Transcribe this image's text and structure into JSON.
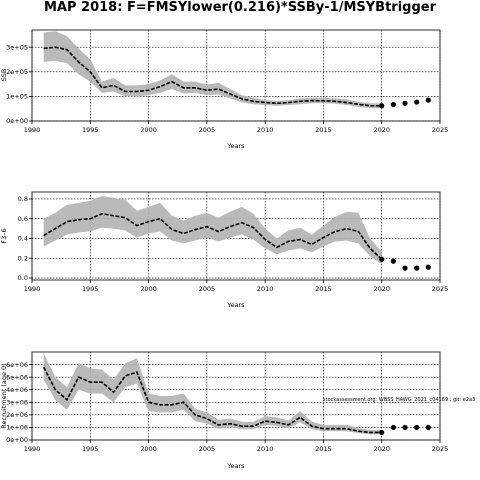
{
  "title": "MAP 2018: F=FMSYlower(0.216)*SSBy-1/MSYBtrigger",
  "chart_data": [
    {
      "type": "line",
      "ylabel": "SSB",
      "xlabel": "Years",
      "xlim": [
        1990,
        2025
      ],
      "ylim": [
        0,
        370000
      ],
      "xticks": [
        "1990",
        "1995",
        "2000",
        "2005",
        "2010",
        "2015",
        "2020",
        "2025"
      ],
      "yticks": [
        "0e+00",
        "1e+05",
        "2e+05",
        "3e+05"
      ],
      "grid": true,
      "series": [
        {
          "x": [
            1991,
            1992,
            1993,
            1994,
            1995,
            1996,
            1997,
            1998,
            1999,
            2000,
            2001,
            2002,
            2003,
            2004,
            2005,
            2006,
            2007,
            2008,
            2009,
            2010,
            2011,
            2012,
            2013,
            2014,
            2015,
            2016,
            2017,
            2018,
            2019,
            2020
          ],
          "values": [
            295000,
            300000,
            290000,
            240000,
            200000,
            135000,
            145000,
            120000,
            120000,
            125000,
            140000,
            160000,
            135000,
            135000,
            125000,
            130000,
            110000,
            90000,
            80000,
            75000,
            72000,
            75000,
            80000,
            83000,
            82000,
            80000,
            75000,
            68000,
            62000,
            62000
          ],
          "lower": [
            240000,
            245000,
            235000,
            190000,
            160000,
            115000,
            120000,
            100000,
            100000,
            105000,
            115000,
            130000,
            112000,
            115000,
            105000,
            108000,
            92000,
            75000,
            68000,
            65000,
            62000,
            65000,
            68000,
            72000,
            72000,
            70000,
            65000,
            58000,
            52000,
            52000
          ],
          "upper": [
            360000,
            365000,
            345000,
            295000,
            250000,
            160000,
            175000,
            145000,
            145000,
            150000,
            165000,
            190000,
            160000,
            160000,
            148000,
            155000,
            130000,
            105000,
            95000,
            85000,
            82000,
            85000,
            92000,
            95000,
            95000,
            92000,
            88000,
            78000,
            72000,
            72000
          ]
        }
      ],
      "projection": {
        "x": [
          2020,
          2021,
          2022,
          2023,
          2024
        ],
        "values": [
          62000,
          67000,
          72000,
          77000,
          85000
        ]
      }
    },
    {
      "type": "line",
      "ylabel": "F3–6",
      "xlabel": "Years",
      "xlim": [
        1990,
        2025
      ],
      "ylim": [
        -0.02,
        0.87
      ],
      "xticks": [
        "1990",
        "1995",
        "2000",
        "2005",
        "2010",
        "2015",
        "2020",
        "2025"
      ],
      "yticks": [
        "0.0",
        "0.2",
        "0.4",
        "0.6",
        "0.8"
      ],
      "grid": true,
      "series": [
        {
          "x": [
            1991,
            1992,
            1993,
            1994,
            1995,
            1996,
            1997,
            1998,
            1999,
            2000,
            2001,
            2002,
            2003,
            2004,
            2005,
            2006,
            2007,
            2008,
            2009,
            2010,
            2011,
            2012,
            2013,
            2014,
            2015,
            2016,
            2017,
            2018,
            2019,
            2020
          ],
          "values": [
            0.43,
            0.5,
            0.57,
            0.59,
            0.6,
            0.65,
            0.63,
            0.61,
            0.53,
            0.57,
            0.6,
            0.49,
            0.45,
            0.49,
            0.52,
            0.47,
            0.52,
            0.56,
            0.51,
            0.39,
            0.31,
            0.37,
            0.39,
            0.34,
            0.41,
            0.47,
            0.5,
            0.47,
            0.3,
            0.19
          ],
          "lower": [
            0.32,
            0.38,
            0.44,
            0.46,
            0.47,
            0.51,
            0.5,
            0.48,
            0.41,
            0.45,
            0.47,
            0.38,
            0.35,
            0.38,
            0.41,
            0.37,
            0.41,
            0.44,
            0.39,
            0.3,
            0.24,
            0.28,
            0.3,
            0.26,
            0.32,
            0.37,
            0.38,
            0.35,
            0.22,
            0.14
          ],
          "upper": [
            0.6,
            0.66,
            0.74,
            0.76,
            0.78,
            0.83,
            0.81,
            0.79,
            0.68,
            0.72,
            0.76,
            0.63,
            0.58,
            0.63,
            0.66,
            0.61,
            0.67,
            0.72,
            0.65,
            0.5,
            0.4,
            0.48,
            0.51,
            0.44,
            0.53,
            0.62,
            0.67,
            0.66,
            0.4,
            0.27
          ]
        }
      ],
      "projection": {
        "x": [
          2020,
          2021,
          2022,
          2023,
          2024
        ],
        "values": [
          0.19,
          0.17,
          0.1,
          0.1,
          0.11
        ]
      }
    },
    {
      "type": "line",
      "ylabel": "Recruitment (age 0)",
      "xlabel": "Years",
      "xlim": [
        1990,
        2025
      ],
      "ylim": [
        0,
        7000000
      ],
      "xticks": [
        "1990",
        "1995",
        "2000",
        "2005",
        "2010",
        "2015",
        "2020",
        "2025"
      ],
      "yticks": [
        "0e+00",
        "1e+06",
        "2e+06",
        "3e+06",
        "4e+06",
        "5e+06",
        "6e+06"
      ],
      "grid": true,
      "annotation": "stockassessment.org: WBSS_HAWG_2021_c04169 ; git: e2a3",
      "series": [
        {
          "x": [
            1991,
            1992,
            1993,
            1994,
            1995,
            1996,
            1997,
            1998,
            1999,
            2000,
            2001,
            2002,
            2003,
            2004,
            2005,
            2006,
            2007,
            2008,
            2009,
            2010,
            2011,
            2012,
            2013,
            2014,
            2015,
            2016,
            2017,
            2018,
            2019,
            2020
          ],
          "values": [
            5800000,
            4000000,
            3200000,
            5000000,
            4600000,
            4600000,
            3800000,
            5100000,
            5400000,
            3000000,
            2800000,
            2800000,
            3000000,
            2000000,
            1700000,
            1200000,
            1300000,
            1100000,
            1100000,
            1500000,
            1400000,
            1200000,
            1800000,
            1100000,
            900000,
            900000,
            900000,
            700000,
            600000,
            600000
          ],
          "lower": [
            4800000,
            3200000,
            2400000,
            4000000,
            3700000,
            3700000,
            3000000,
            4200000,
            4500000,
            2300000,
            2200000,
            2200000,
            2400000,
            1500000,
            1300000,
            900000,
            1000000,
            850000,
            850000,
            1200000,
            1100000,
            950000,
            1400000,
            850000,
            700000,
            700000,
            700000,
            550000,
            450000,
            450000
          ],
          "upper": [
            6900000,
            5000000,
            4200000,
            6100000,
            5700000,
            5600000,
            4800000,
            6100000,
            6500000,
            3700000,
            3500000,
            3500000,
            3700000,
            2500000,
            2200000,
            1600000,
            1700000,
            1450000,
            1450000,
            1900000,
            1800000,
            1550000,
            2300000,
            1450000,
            1200000,
            1200000,
            1200000,
            950000,
            800000,
            800000
          ]
        }
      ],
      "projection": {
        "x": [
          2020,
          2021,
          2022,
          2023,
          2024
        ],
        "values": [
          600000,
          1000000,
          1000000,
          1000000,
          1000000
        ]
      }
    }
  ]
}
